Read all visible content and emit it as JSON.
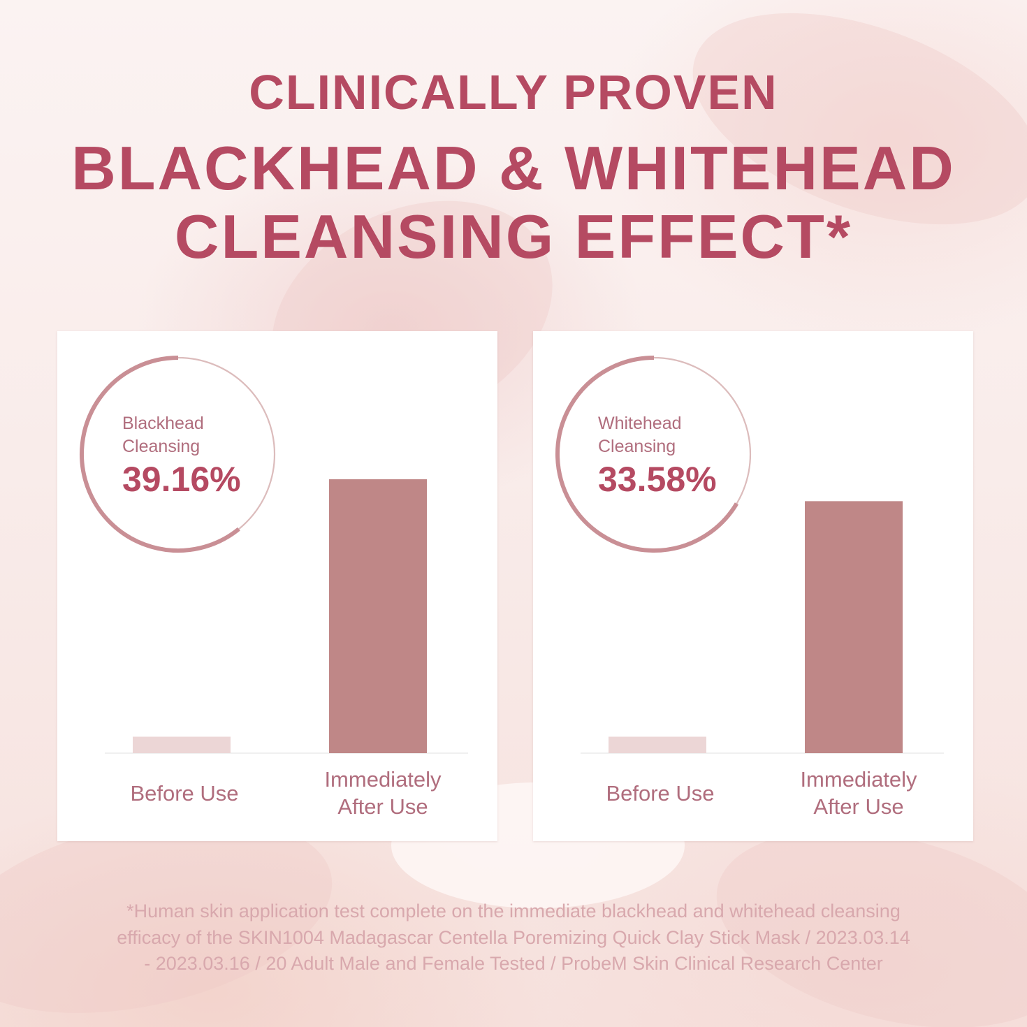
{
  "header": {
    "title_line1": "CLINICALLY PROVEN",
    "title_line2a": "BLACKHEAD & WHITEHEAD",
    "title_line2b": "CLEANSING EFFECT*"
  },
  "colors": {
    "accent": "#b54a62",
    "bar_after": "#bf8787",
    "bar_before": "#ecd6d6",
    "ring_light": "#dcbcbc",
    "ring_dark": "#c98f95",
    "label_text": "#b06d7d",
    "footnote_text": "#d8a8ad"
  },
  "chart_data": [
    {
      "type": "bar",
      "categories": [
        "Before Use",
        "Immediately After Use"
      ],
      "category_lines": [
        [
          "Before Use"
        ],
        [
          "Immediately",
          "After Use"
        ]
      ],
      "values": [
        6,
        100
      ],
      "ylim": [
        0,
        100
      ],
      "annotation": {
        "label_lines": [
          "Blackhead",
          "Cleansing"
        ],
        "value_text": "39.16%",
        "value": 39.16
      }
    },
    {
      "type": "bar",
      "categories": [
        "Before Use",
        "Immediately After Use"
      ],
      "category_lines": [
        [
          "Before Use"
        ],
        [
          "Immediately",
          "After Use"
        ]
      ],
      "values": [
        6,
        92
      ],
      "ylim": [
        0,
        100
      ],
      "annotation": {
        "label_lines": [
          "Whitehead",
          "Cleansing"
        ],
        "value_text": "33.58%",
        "value": 33.58
      }
    }
  ],
  "footnote": {
    "lines": [
      "*Human skin application test complete on the immediate blackhead and whitehead cleansing",
      "efficacy of the SKIN1004 Madagascar Centella Poremizing Quick Clay Stick Mask / 2023.03.14",
      "- 2023.03.16 / 20 Adult Male and Female Tested / ProbeM Skin Clinical Research Center"
    ]
  }
}
